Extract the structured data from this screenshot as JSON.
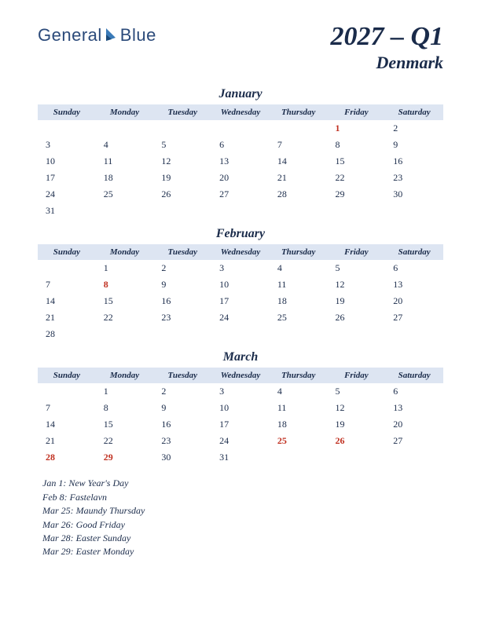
{
  "logo": {
    "part1": "General",
    "part2": "Blue"
  },
  "title": {
    "main": "2027 – Q1",
    "sub": "Denmark"
  },
  "style": {
    "header_bg": "#dde5f2",
    "text_color": "#1a2b4a",
    "holiday_color": "#c03020",
    "page_bg": "#ffffff",
    "title_fontsize": 34,
    "sub_fontsize": 22,
    "month_fontsize": 16,
    "dayhead_fontsize": 11,
    "cell_fontsize": 12,
    "holidaylist_fontsize": 12
  },
  "day_headers": [
    "Sunday",
    "Monday",
    "Tuesday",
    "Wednesday",
    "Thursday",
    "Friday",
    "Saturday"
  ],
  "months": [
    {
      "name": "January",
      "weeks": [
        [
          "",
          "",
          "",
          "",
          "",
          "1",
          "2"
        ],
        [
          "3",
          "4",
          "5",
          "6",
          "7",
          "8",
          "9"
        ],
        [
          "10",
          "11",
          "12",
          "13",
          "14",
          "15",
          "16"
        ],
        [
          "17",
          "18",
          "19",
          "20",
          "21",
          "22",
          "23"
        ],
        [
          "24",
          "25",
          "26",
          "27",
          "28",
          "29",
          "30"
        ],
        [
          "31",
          "",
          "",
          "",
          "",
          "",
          ""
        ]
      ],
      "holidays": [
        "1"
      ]
    },
    {
      "name": "February",
      "weeks": [
        [
          "",
          "1",
          "2",
          "3",
          "4",
          "5",
          "6"
        ],
        [
          "7",
          "8",
          "9",
          "10",
          "11",
          "12",
          "13"
        ],
        [
          "14",
          "15",
          "16",
          "17",
          "18",
          "19",
          "20"
        ],
        [
          "21",
          "22",
          "23",
          "24",
          "25",
          "26",
          "27"
        ],
        [
          "28",
          "",
          "",
          "",
          "",
          "",
          ""
        ]
      ],
      "holidays": [
        "8"
      ]
    },
    {
      "name": "March",
      "weeks": [
        [
          "",
          "1",
          "2",
          "3",
          "4",
          "5",
          "6"
        ],
        [
          "7",
          "8",
          "9",
          "10",
          "11",
          "12",
          "13"
        ],
        [
          "14",
          "15",
          "16",
          "17",
          "18",
          "19",
          "20"
        ],
        [
          "21",
          "22",
          "23",
          "24",
          "25",
          "26",
          "27"
        ],
        [
          "28",
          "29",
          "30",
          "31",
          "",
          "",
          ""
        ]
      ],
      "holidays": [
        "25",
        "26",
        "28",
        "29"
      ]
    }
  ],
  "holiday_list": [
    "Jan 1: New Year's Day",
    "Feb 8: Fastelavn",
    "Mar 25: Maundy Thursday",
    "Mar 26: Good Friday",
    "Mar 28: Easter Sunday",
    "Mar 29: Easter Monday"
  ]
}
